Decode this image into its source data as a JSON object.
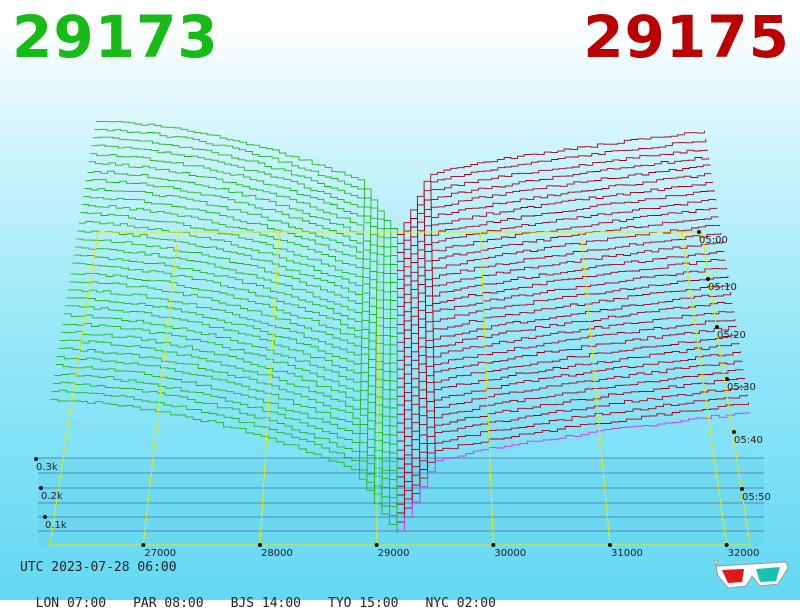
{
  "header": {
    "bid_price": "29173",
    "ask_price": "29175",
    "bid_color": "#16bb16",
    "ask_color": "#bb0000"
  },
  "footer": {
    "utc_label": "UTC 2023-07-28 06:00",
    "zones": [
      {
        "label": "LON 07:00"
      },
      {
        "label": "PAR 08:00"
      },
      {
        "label": "BJS 14:00"
      },
      {
        "label": "TYO 15:00"
      },
      {
        "label": "NYC 02:00"
      }
    ],
    "icon": "3d-glasses-icon"
  },
  "chart_data": {
    "type": "area",
    "description_kind": "3d-order-book-depth",
    "x_ticks": [
      "27000",
      "28000",
      "29000",
      "30000",
      "31000",
      "32000"
    ],
    "time_ticks": [
      "05:00",
      "05:10",
      "05:20",
      "05:30",
      "05:40",
      "05:50"
    ],
    "volume_ticks": [
      "0.3k",
      "0.2k",
      "0.1k"
    ],
    "mid_price": 29174,
    "xlim": [
      26200,
      32200
    ],
    "series": [
      {
        "name": "bids",
        "color": "#1dbb22"
      },
      {
        "name": "asks",
        "color": "#a4001a"
      }
    ],
    "grid": true
  }
}
